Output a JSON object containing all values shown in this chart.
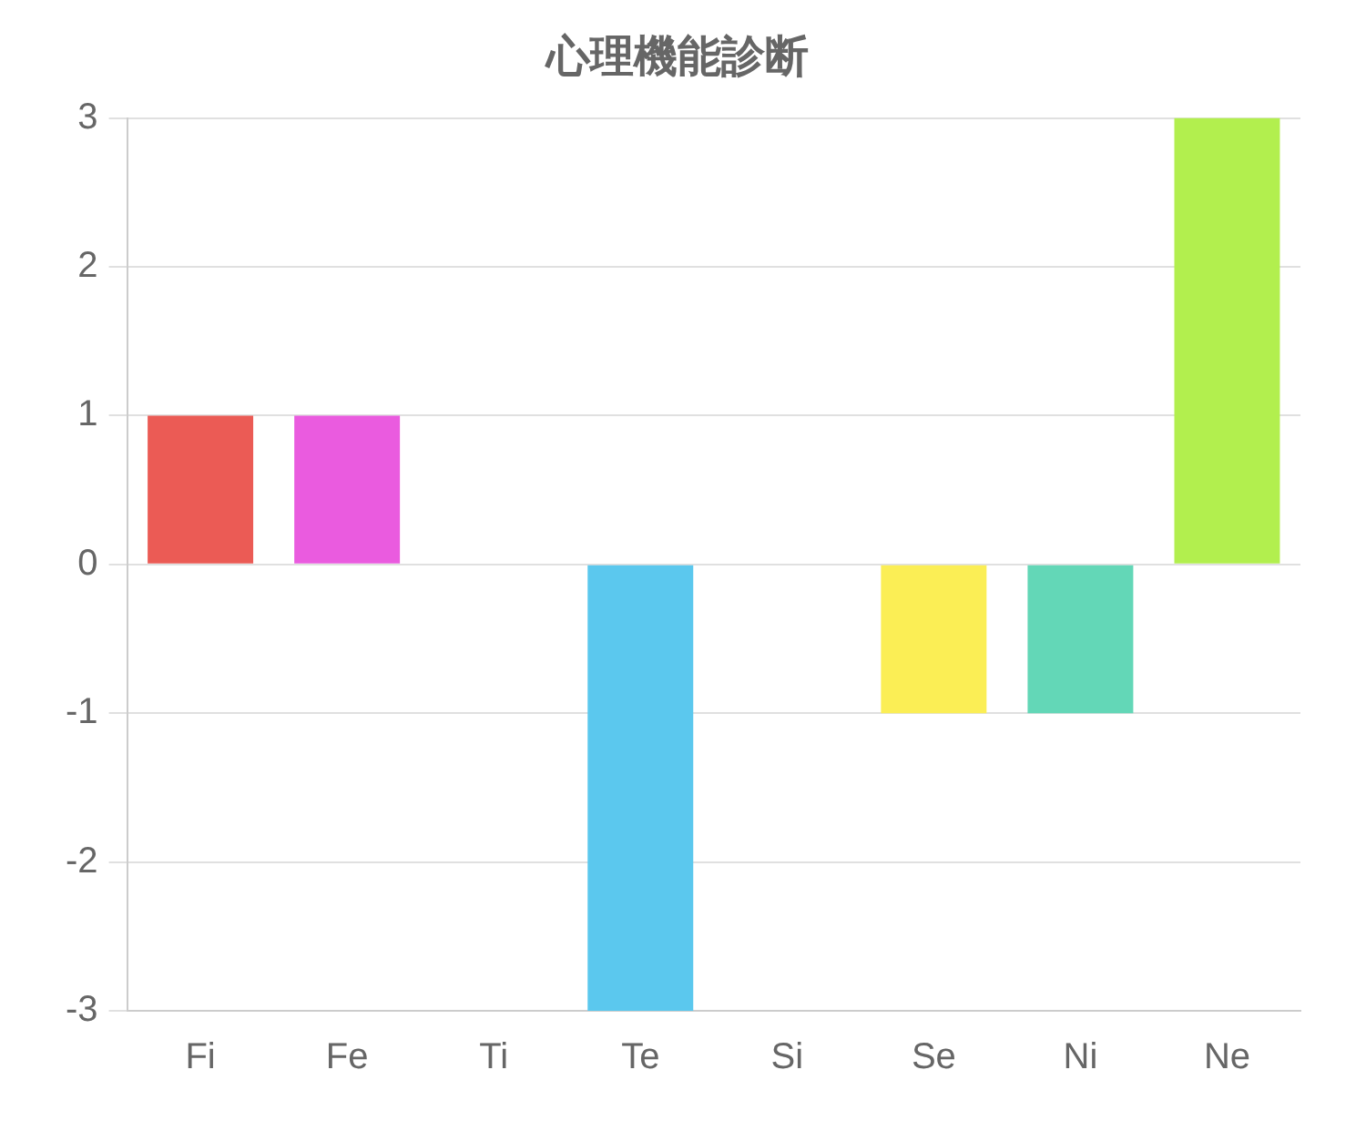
{
  "chart_data": {
    "type": "bar",
    "title": "心理機能診断",
    "categories": [
      "Fi",
      "Fe",
      "Ti",
      "Te",
      "Si",
      "Se",
      "Ni",
      "Ne"
    ],
    "values": [
      1,
      1,
      0,
      -3,
      0,
      -1,
      -1,
      3
    ],
    "colors": [
      "#eb5b55",
      "#ea5bdf",
      "#9b7fe0",
      "#5bc8ee",
      "#f5a54f",
      "#fbee55",
      "#63d7b7",
      "#b2ef4e"
    ],
    "ylim": [
      -3,
      3
    ],
    "yticks": [
      -3,
      -2,
      -1,
      0,
      1,
      2,
      3
    ],
    "grid": "y",
    "legend": false
  }
}
